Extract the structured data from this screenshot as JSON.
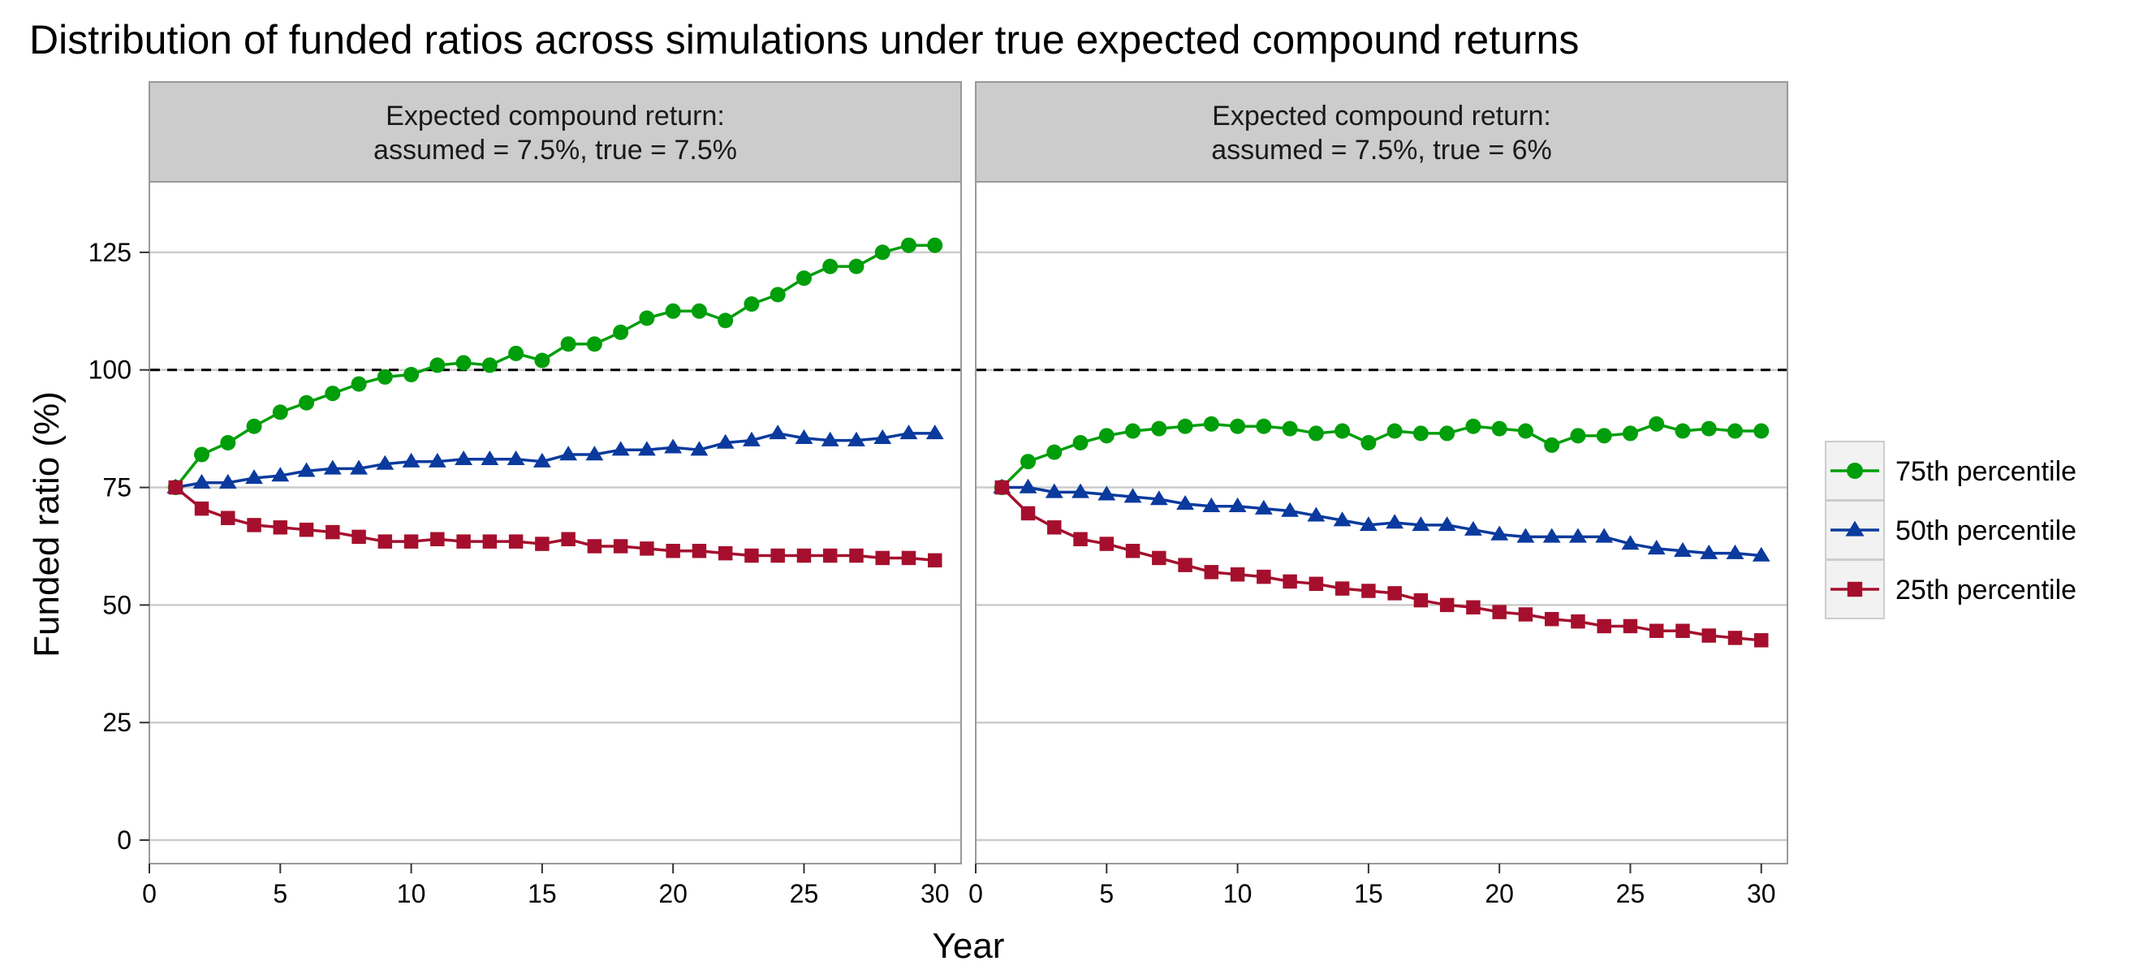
{
  "chart_data": {
    "type": "line",
    "title": "Distribution of funded ratios across simulations under true expected compound returns",
    "xlabel": "Year",
    "ylabel": "Funded ratio (%)",
    "xlim": [
      0,
      31
    ],
    "ylim": [
      -5,
      140
    ],
    "x_ticks": [
      0,
      5,
      10,
      15,
      20,
      25,
      30
    ],
    "y_ticks": [
      0,
      25,
      50,
      75,
      100,
      125
    ],
    "reference_line": {
      "y": 100,
      "style": "dashed"
    },
    "legend_position": "right",
    "grid": true,
    "series_styles": [
      {
        "name": "75th percentile",
        "color": "#009E0A",
        "marker": "circle"
      },
      {
        "name": "50th percentile",
        "color": "#0B3A9E",
        "marker": "triangle"
      },
      {
        "name": "25th percentile",
        "color": "#A50F2D",
        "marker": "square"
      }
    ],
    "panels": [
      {
        "strip": [
          "Expected compound return:",
          "assumed = 7.5%, true = 7.5%"
        ],
        "x": [
          1,
          2,
          3,
          4,
          5,
          6,
          7,
          8,
          9,
          10,
          11,
          12,
          13,
          14,
          15,
          16,
          17,
          18,
          19,
          20,
          21,
          22,
          23,
          24,
          25,
          26,
          27,
          28,
          29,
          30
        ],
        "series": [
          {
            "name": "75th percentile",
            "values": [
              75,
              82,
              84.5,
              88,
              91,
              93,
              95,
              97,
              98.5,
              99,
              101,
              101.5,
              101,
              103.5,
              102,
              105.5,
              105.5,
              108,
              111,
              112.5,
              112.5,
              110.5,
              114,
              116,
              119.5,
              122,
              122,
              125,
              126.5,
              126.5
            ]
          },
          {
            "name": "50th percentile",
            "values": [
              75,
              76,
              76,
              77,
              77.5,
              78.5,
              79,
              79,
              80,
              80.5,
              80.5,
              81,
              81,
              81,
              80.5,
              82,
              82,
              83,
              83,
              83.5,
              83,
              84.5,
              85,
              86.5,
              85.5,
              85,
              85,
              85.5,
              86.5,
              86.5
            ]
          },
          {
            "name": "25th percentile",
            "values": [
              75,
              70.5,
              68.5,
              67,
              66.5,
              66,
              65.5,
              64.5,
              63.5,
              63.5,
              64,
              63.5,
              63.5,
              63.5,
              63,
              64,
              62.5,
              62.5,
              62,
              61.5,
              61.5,
              61,
              60.5,
              60.5,
              60.5,
              60.5,
              60.5,
              60,
              60,
              59.5
            ]
          }
        ]
      },
      {
        "strip": [
          "Expected compound return:",
          "assumed = 7.5%, true = 6%"
        ],
        "x": [
          1,
          2,
          3,
          4,
          5,
          6,
          7,
          8,
          9,
          10,
          11,
          12,
          13,
          14,
          15,
          16,
          17,
          18,
          19,
          20,
          21,
          22,
          23,
          24,
          25,
          26,
          27,
          28,
          29,
          30
        ],
        "series": [
          {
            "name": "75th percentile",
            "values": [
              75,
              80.5,
              82.5,
              84.5,
              86,
              87,
              87.5,
              88,
              88.5,
              88,
              88,
              87.5,
              86.5,
              87,
              84.5,
              87,
              86.5,
              86.5,
              88,
              87.5,
              87,
              84,
              86,
              86,
              86.5,
              88.5,
              87,
              87.5,
              87,
              87
            ]
          },
          {
            "name": "50th percentile",
            "values": [
              75,
              75,
              74,
              74,
              73.5,
              73,
              72.5,
              71.5,
              71,
              71,
              70.5,
              70,
              69,
              68,
              67,
              67.5,
              67,
              67,
              66,
              65,
              64.5,
              64.5,
              64.5,
              64.5,
              63,
              62,
              61.5,
              61,
              61,
              60.5
            ]
          },
          {
            "name": "25th percentile",
            "values": [
              75,
              69.5,
              66.5,
              64,
              63,
              61.5,
              60,
              58.5,
              57,
              56.5,
              56,
              55,
              54.5,
              53.5,
              53,
              52.5,
              51,
              50,
              49.5,
              48.5,
              48,
              47,
              46.5,
              45.5,
              45.5,
              44.5,
              44.5,
              43.5,
              43,
              42.5
            ]
          }
        ]
      }
    ]
  }
}
